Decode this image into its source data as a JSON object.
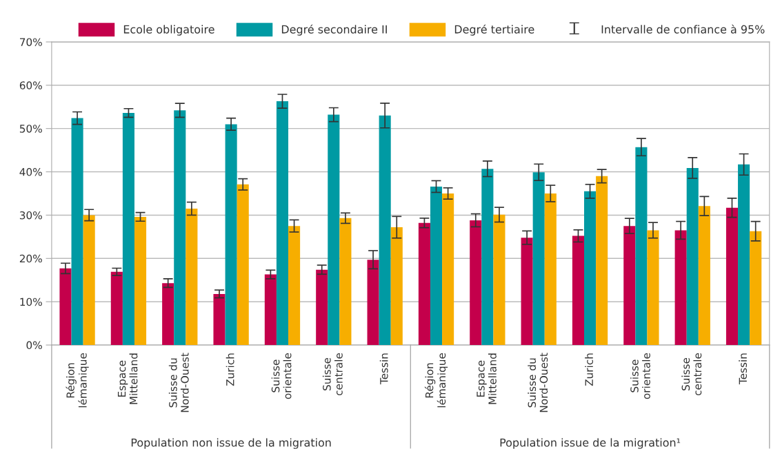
{
  "chart_data": {
    "type": "bar",
    "categories": [
      "Région\nlémanique",
      "Espace\nMittelland",
      "Suisse du\nNord-Ouest",
      "Zurich",
      "Suisse\norientale",
      "Suisse\ncentrale",
      "Tessin",
      "Région\nlémanique",
      "Espace\nMittelland",
      "Suisse du\nNord-Ouest",
      "Zurich",
      "Suisse\norientale",
      "Suisse\ncentrale",
      "Tessin"
    ],
    "series": [
      {
        "name": "Ecole obligatoire",
        "color": "#c4004b",
        "values": [
          17.7,
          16.9,
          14.3,
          11.8,
          16.3,
          17.4,
          19.7,
          28.2,
          28.8,
          24.8,
          25.2,
          27.5,
          26.5,
          31.7
        ],
        "errors": [
          1.2,
          0.85,
          1.0,
          0.9,
          1.0,
          1.05,
          2.1,
          1.1,
          1.5,
          1.55,
          1.4,
          1.75,
          2.05,
          2.2
        ]
      },
      {
        "name": "Degré secondaire II",
        "color": "#009aa3",
        "values": [
          52.4,
          53.6,
          54.2,
          51.0,
          56.3,
          53.2,
          53.0,
          36.6,
          40.7,
          39.9,
          35.5,
          45.7,
          40.9,
          41.7
        ],
        "errors": [
          1.45,
          1.0,
          1.6,
          1.4,
          1.6,
          1.6,
          2.85,
          1.35,
          1.8,
          1.9,
          1.6,
          2.0,
          2.4,
          2.45
        ]
      },
      {
        "name": "Degré tertiaire",
        "color": "#f7ae00",
        "values": [
          30.0,
          29.6,
          31.5,
          37.1,
          27.5,
          29.3,
          27.2,
          35.0,
          30.1,
          35.0,
          39.0,
          26.5,
          32.1,
          26.3
        ],
        "errors": [
          1.3,
          1.0,
          1.5,
          1.3,
          1.4,
          1.2,
          2.5,
          1.3,
          1.7,
          1.9,
          1.55,
          1.8,
          2.2,
          2.25
        ]
      }
    ],
    "ylim": [
      0,
      70
    ],
    "yticks": [
      {
        "value": 0,
        "label": "0%"
      },
      {
        "value": 10,
        "label": "10%"
      },
      {
        "value": 20,
        "label": "20%"
      },
      {
        "value": 30,
        "label": "30%"
      },
      {
        "value": 40,
        "label": "40%"
      },
      {
        "value": 50,
        "label": "50%"
      },
      {
        "value": 60,
        "label": "60%"
      },
      {
        "value": 70,
        "label": "70%"
      }
    ],
    "grid": "y",
    "legend": "top",
    "annotations": [
      "Population non issue de la migration",
      "Population issue de la migration¹",
      "Intervalle de confiance à 95%"
    ]
  }
}
